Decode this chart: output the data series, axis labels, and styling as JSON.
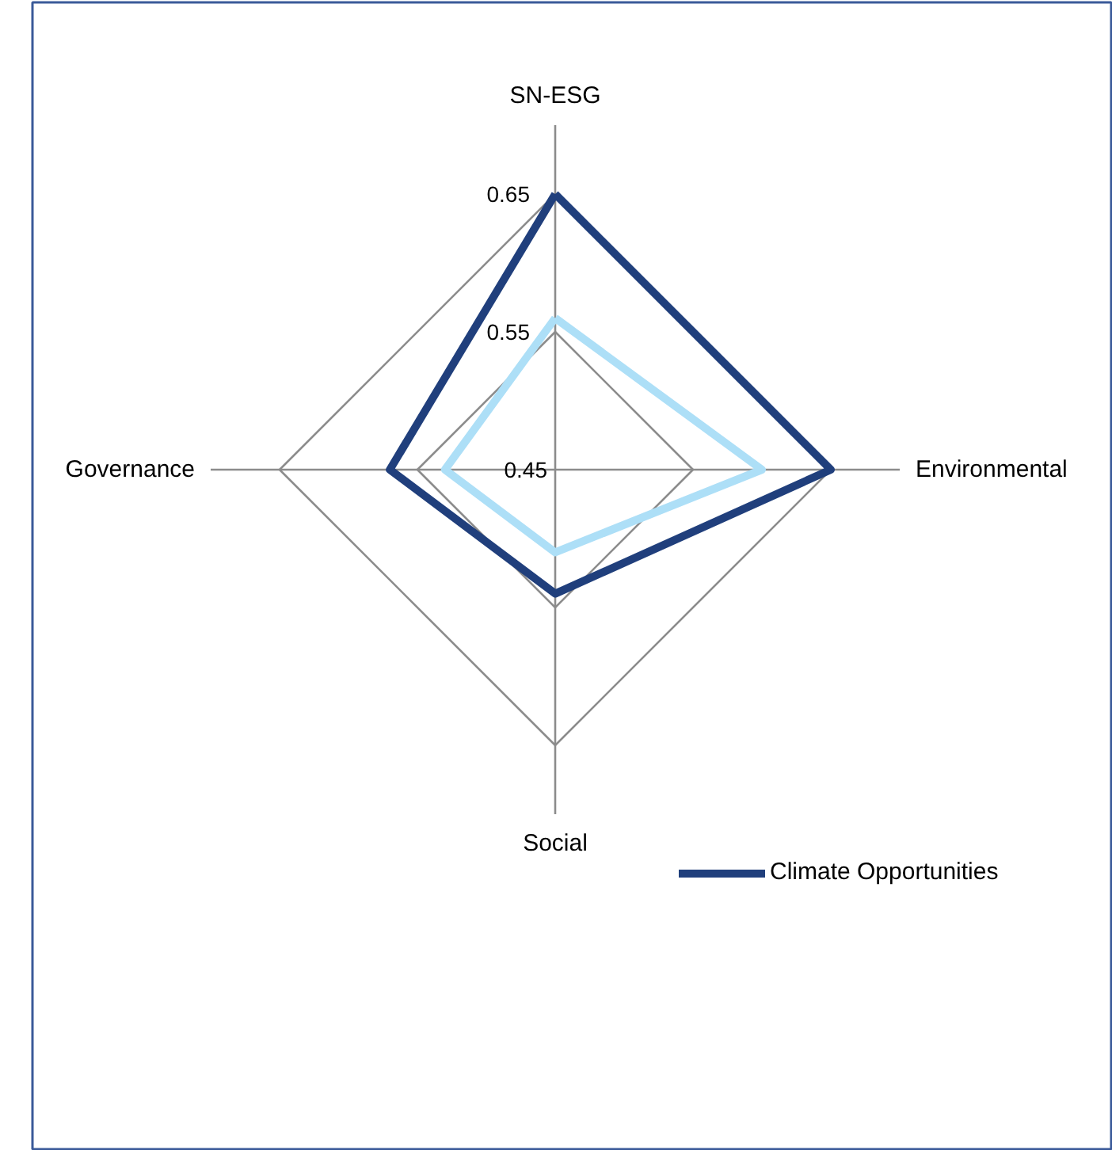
{
  "chart_data": {
    "type": "radar",
    "categories": [
      "SN-ESG",
      "Environmental",
      "Social",
      "Governance"
    ],
    "series": [
      {
        "name": "Climate Opportunities",
        "color": "#203f7c",
        "values": [
          0.65,
          0.65,
          0.54,
          0.57
        ]
      },
      {
        "color": "#addff7",
        "values": [
          0.56,
          0.6,
          0.51,
          0.53
        ]
      }
    ],
    "ylim": [
      0.45,
      0.65
    ],
    "yticks": [
      0.45,
      0.55,
      0.65
    ],
    "grid": true,
    "legend": "bottom right",
    "line_style": "solid"
  }
}
